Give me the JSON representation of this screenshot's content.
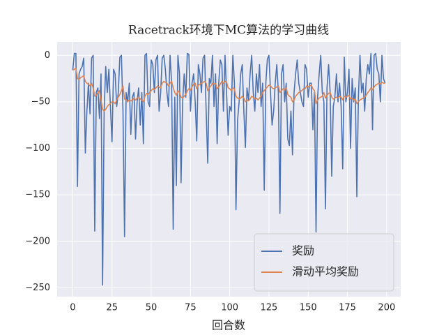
{
  "chart_data": {
    "type": "line",
    "title": "Racetrack环境下MC算法的学习曲线",
    "x_label": "回合数",
    "x": [
      0,
      1,
      2,
      3,
      4,
      5,
      6,
      7,
      8,
      9,
      10,
      11,
      12,
      13,
      14,
      15,
      16,
      17,
      18,
      19,
      20,
      21,
      22,
      23,
      24,
      25,
      26,
      27,
      28,
      29,
      30,
      31,
      32,
      33,
      34,
      35,
      36,
      37,
      38,
      39,
      40,
      41,
      42,
      43,
      44,
      45,
      46,
      47,
      48,
      49,
      50,
      51,
      52,
      53,
      54,
      55,
      56,
      57,
      58,
      59,
      60,
      61,
      62,
      63,
      64,
      65,
      66,
      67,
      68,
      69,
      70,
      71,
      72,
      73,
      74,
      75,
      76,
      77,
      78,
      79,
      80,
      81,
      82,
      83,
      84,
      85,
      86,
      87,
      88,
      89,
      90,
      91,
      92,
      93,
      94,
      95,
      96,
      97,
      98,
      99,
      100,
      101,
      102,
      103,
      104,
      105,
      106,
      107,
      108,
      109,
      110,
      111,
      112,
      113,
      114,
      115,
      116,
      117,
      118,
      119,
      120,
      121,
      122,
      123,
      124,
      125,
      126,
      127,
      128,
      129,
      130,
      131,
      132,
      133,
      134,
      135,
      136,
      137,
      138,
      139,
      140,
      141,
      142,
      143,
      144,
      145,
      146,
      147,
      148,
      149,
      150,
      151,
      152,
      153,
      154,
      155,
      156,
      157,
      158,
      159,
      160,
      161,
      162,
      163,
      164,
      165,
      166,
      167,
      168,
      169,
      170,
      171,
      172,
      173,
      174,
      175,
      176,
      177,
      178,
      179,
      180,
      181,
      182,
      183,
      184,
      185,
      186,
      187,
      188,
      189,
      190,
      191,
      192,
      193,
      194,
      195,
      196,
      197,
      198,
      199
    ],
    "series": [
      {
        "name": "奖励",
        "color": "#4c72b0",
        "values": [
          -16,
          2,
          2,
          -141,
          -20,
          -15,
          -12,
          -3,
          -105,
          -60,
          -30,
          -63,
          -3,
          0,
          -189,
          -40,
          -35,
          -68,
          -20,
          -247,
          -60,
          -12,
          -40,
          -15,
          -55,
          -93,
          -15,
          -20,
          -55,
          -40,
          -2,
          0,
          -60,
          -195,
          -40,
          -50,
          -30,
          -85,
          -45,
          -40,
          -90,
          -50,
          -35,
          -75,
          -40,
          -95,
          0,
          2,
          -50,
          -55,
          -5,
          -10,
          -40,
          -5,
          0,
          -60,
          -40,
          -3,
          0,
          -15,
          -40,
          -55,
          0,
          -30,
          -187,
          -45,
          -140,
          0,
          -20,
          -137,
          -50,
          -20,
          -45,
          2,
          1,
          -60,
          -30,
          -20,
          -50,
          -92,
          -10,
          -20,
          -40,
          -3,
          0,
          -60,
          -116,
          -25,
          -30,
          0,
          -55,
          -20,
          -95,
          -30,
          -5,
          -10,
          -60,
          0,
          -40,
          -86,
          -55,
          -60,
          0,
          -30,
          -166,
          -70,
          -50,
          -20,
          -10,
          -60,
          -99,
          -35,
          -48,
          -20,
          0,
          -40,
          -60,
          -20,
          -40,
          -10,
          -55,
          -30,
          -145,
          -30,
          -4,
          0,
          -40,
          -75,
          -60,
          -30,
          -10,
          -40,
          -170,
          -20,
          -10,
          -50,
          -30,
          -90,
          -97,
          -60,
          -107,
          -40,
          -20,
          -5,
          -30,
          -40,
          -50,
          -55,
          -10,
          -15,
          -45,
          -30,
          -30,
          -80,
          -40,
          -190,
          -45,
          -20,
          0,
          -40,
          -50,
          -165,
          -35,
          -10,
          -40,
          -130,
          -55,
          -45,
          -20,
          -50,
          -30,
          -55,
          -122,
          -2,
          -50,
          -40,
          -15,
          -100,
          -25,
          -50,
          -35,
          -152,
          -45,
          0,
          -40,
          -30,
          -60,
          -25,
          -10,
          -20,
          2,
          -80,
          0,
          2,
          -15,
          -20,
          -50,
          0,
          -25,
          -30
        ]
      },
      {
        "name": "滑动平均奖励",
        "color": "#dd8452",
        "values": [
          -16,
          -15,
          -14,
          -25,
          -26,
          -24,
          -23,
          -22,
          -28,
          -30,
          -31,
          -33,
          -30,
          -35,
          -44,
          -43,
          -40,
          -38,
          -48,
          -58,
          -60,
          -58,
          -55,
          -53,
          -52,
          -50,
          -50,
          -52,
          -48,
          -45,
          -42,
          -38,
          -33,
          -47,
          -48,
          -50,
          -48,
          -49,
          -48,
          -46,
          -48,
          -46,
          -45,
          -47,
          -48,
          -50,
          -44,
          -41,
          -42,
          -40,
          -38,
          -36,
          -37,
          -35,
          -33,
          -34,
          -35,
          -30,
          -28,
          -29,
          -30,
          -33,
          -30,
          -28,
          -35,
          -40,
          -43,
          -38,
          -40,
          -45,
          -46,
          -44,
          -42,
          -38,
          -36,
          -38,
          -34,
          -31,
          -30,
          -36,
          -32,
          -31,
          -30,
          -29,
          -28,
          -30,
          -38,
          -35,
          -33,
          -30,
          -31,
          -30,
          -36,
          -34,
          -31,
          -28,
          -30,
          -28,
          -29,
          -35,
          -36,
          -38,
          -35,
          -36,
          -44,
          -46,
          -47,
          -46,
          -44,
          -46,
          -50,
          -48,
          -49,
          -47,
          -44,
          -45,
          -47,
          -46,
          -48,
          -46,
          -44,
          -40,
          -38,
          -36,
          -34,
          -32,
          -33,
          -35,
          -36,
          -35,
          -34,
          -33,
          -40,
          -38,
          -36,
          -37,
          -35,
          -42,
          -44,
          -45,
          -50,
          -48,
          -44,
          -42,
          -40,
          -39,
          -38,
          -36,
          -36,
          -33,
          -34,
          -33,
          -32,
          -36,
          -38,
          -52,
          -48,
          -46,
          -45,
          -44,
          -40,
          -46,
          -43,
          -41,
          -40,
          -45,
          -47,
          -46,
          -45,
          -46,
          -44,
          -45,
          -48,
          -44,
          -45,
          -44,
          -43,
          -47,
          -46,
          -48,
          -47,
          -52,
          -50,
          -48,
          -47,
          -46,
          -45,
          -43,
          -40,
          -38,
          -35,
          -37,
          -34,
          -32,
          -31,
          -30,
          -31,
          -29,
          -30,
          -30
        ]
      }
    ],
    "xlim": [
      -9.95,
      208.95
    ],
    "ylim": [
      -259.45,
      14.45
    ],
    "xticks": [
      0,
      25,
      50,
      75,
      100,
      125,
      150,
      175,
      200
    ],
    "yticks": [
      0,
      {
        "value": -50,
        "label": "−50"
      },
      {
        "value": -100,
        "label": "−100"
      },
      {
        "value": -150,
        "label": "−150"
      },
      {
        "value": -200,
        "label": "−200"
      },
      {
        "value": -250,
        "label": "−250"
      }
    ],
    "grid": true,
    "legend": "lower right"
  }
}
